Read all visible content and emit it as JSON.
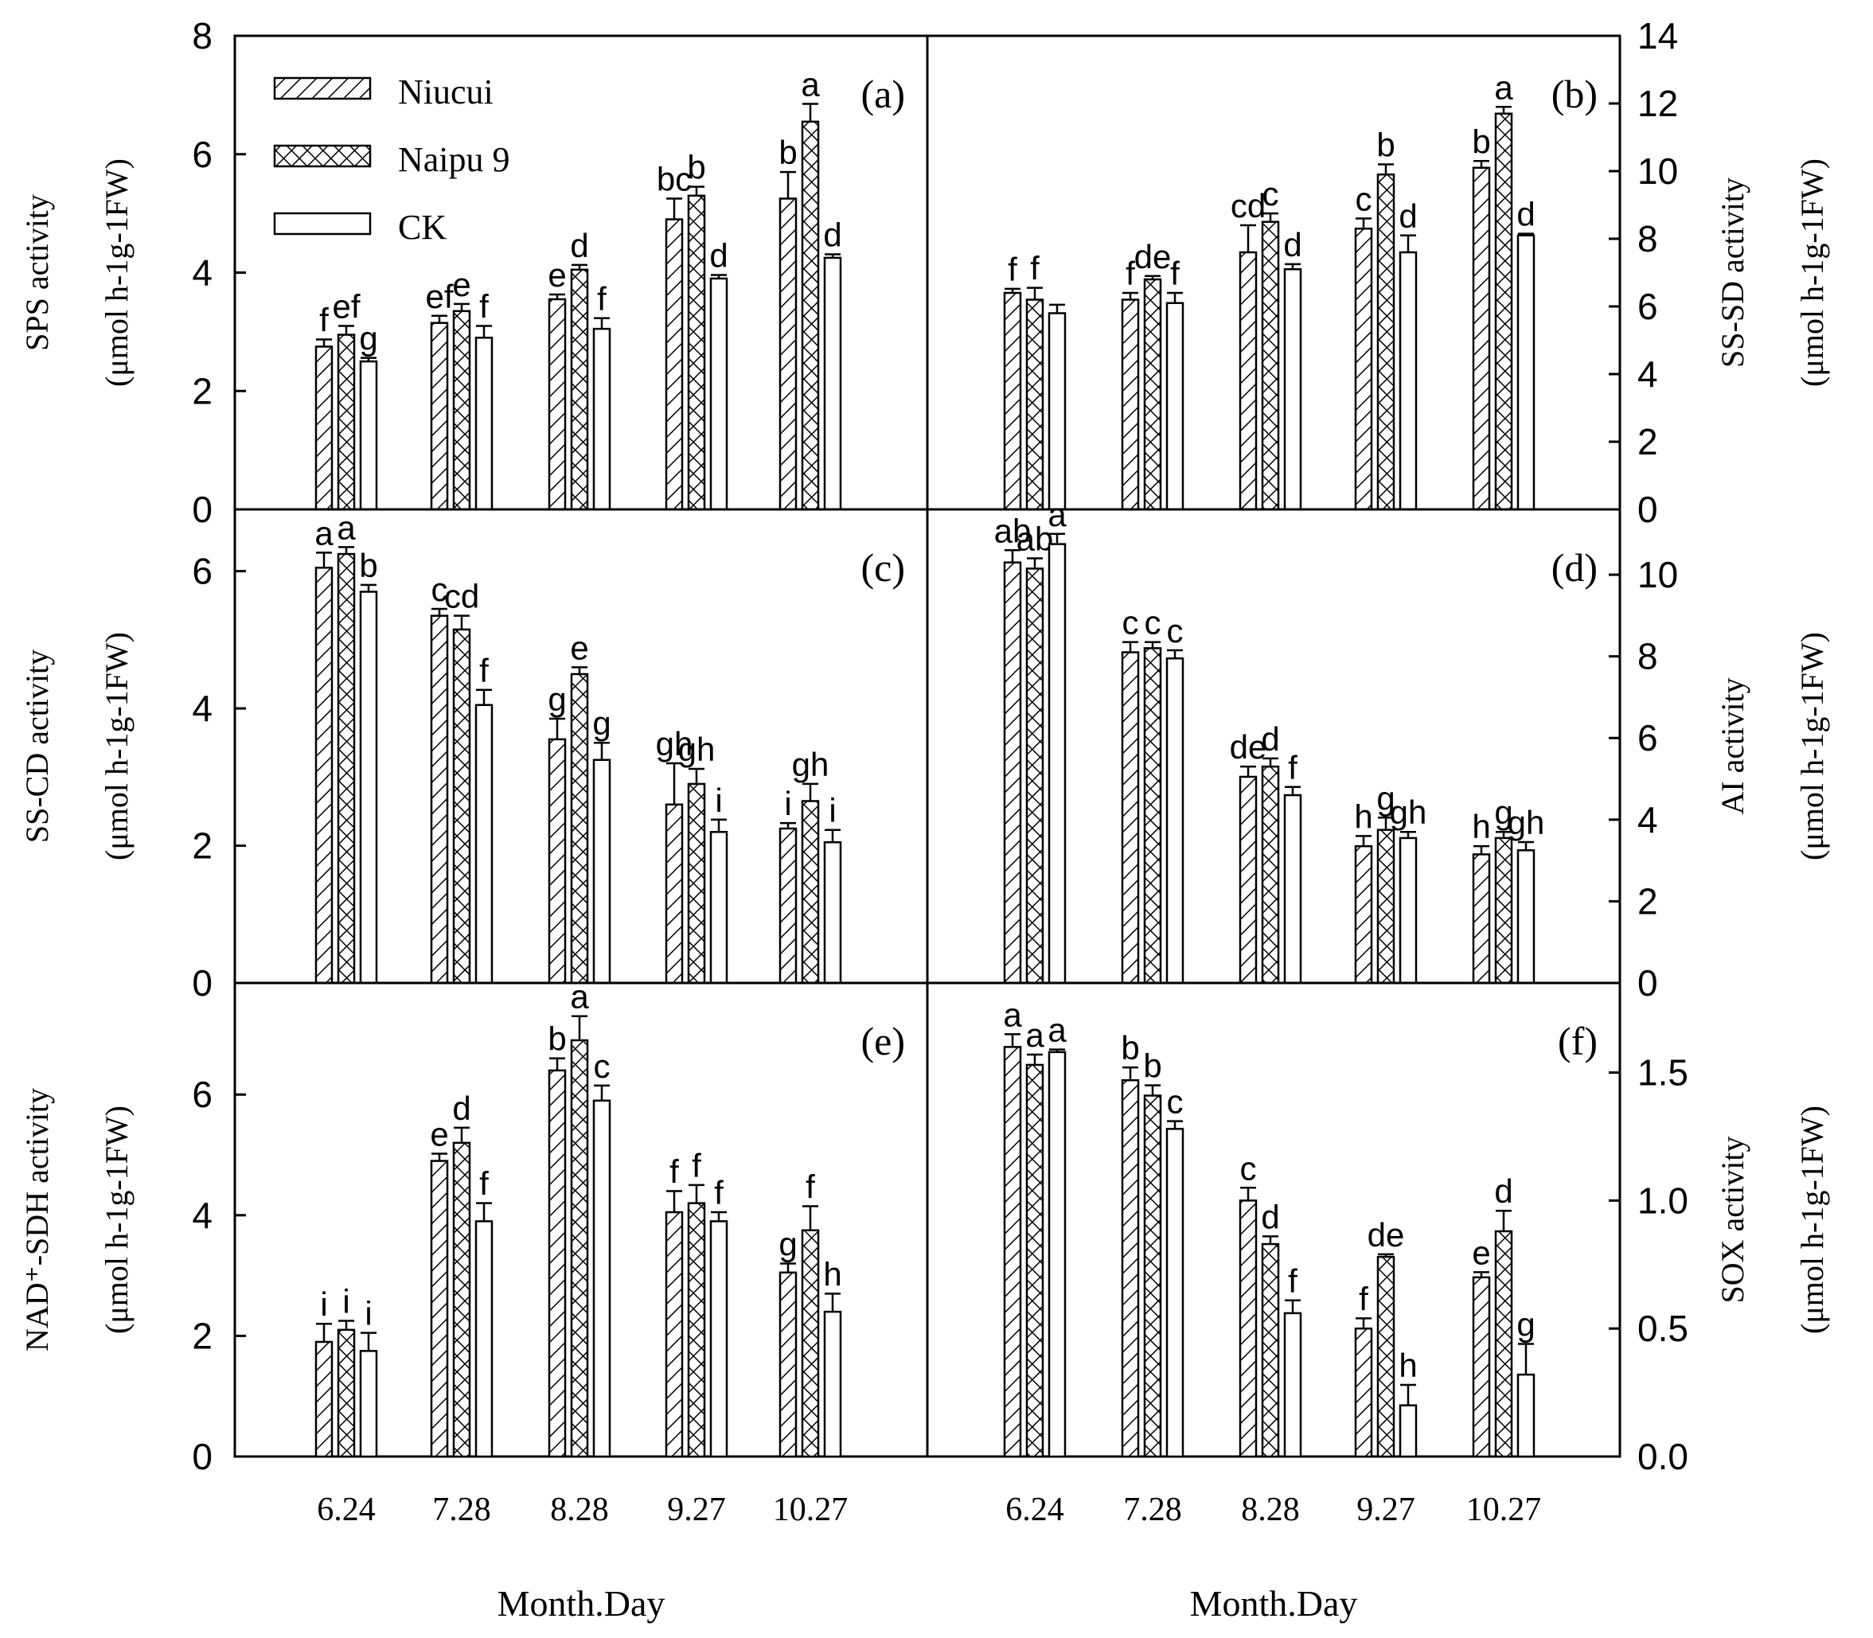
{
  "legend": [
    "Niucui",
    "Naipu 9",
    "CK"
  ],
  "x_title": "Month.Day",
  "chart_data": [
    {
      "type": "bar",
      "panel": "(a)",
      "ylabel_line1": "SPS activity",
      "ylabel_line2": "(μmol h-1g-1FW)",
      "ylim": [
        0,
        8
      ],
      "yticks": [
        0,
        2,
        4,
        6,
        8
      ],
      "categories": [
        "6.24",
        "7.28",
        "8.28",
        "9.27",
        "10.27"
      ],
      "series": [
        {
          "name": "Niucui",
          "values": [
            2.75,
            3.15,
            3.55,
            4.9,
            5.25
          ],
          "errors": [
            0.12,
            0.12,
            0.08,
            0.35,
            0.45
          ],
          "labels": [
            "f",
            "ef",
            "e",
            "bc",
            "b"
          ]
        },
        {
          "name": "Naipu 9",
          "values": [
            2.95,
            3.35,
            4.05,
            5.3,
            6.55
          ],
          "errors": [
            0.15,
            0.12,
            0.08,
            0.15,
            0.3
          ],
          "labels": [
            "ef",
            "e",
            "d",
            "b",
            "a"
          ]
        },
        {
          "name": "CK",
          "values": [
            2.5,
            2.9,
            3.05,
            3.9,
            4.25
          ],
          "errors": [
            0.06,
            0.2,
            0.18,
            0.06,
            0.06
          ],
          "labels": [
            "g",
            "f",
            "f",
            "d",
            "d"
          ]
        }
      ]
    },
    {
      "type": "bar",
      "panel": "(b)",
      "ylabel_line1": "SS-SD activity",
      "ylabel_line2": "(μmol h-1g-1FW)",
      "ylim": [
        0,
        14
      ],
      "yticks": [
        0,
        2,
        4,
        6,
        8,
        10,
        12,
        14
      ],
      "categories": [
        "6.24",
        "7.28",
        "8.28",
        "9.27",
        "10.27"
      ],
      "series": [
        {
          "name": "Niucui",
          "values": [
            6.4,
            6.2,
            7.6,
            8.3,
            10.1
          ],
          "errors": [
            0.12,
            0.2,
            0.8,
            0.3,
            0.2
          ],
          "labels": [
            "f",
            "f",
            "cd",
            "c",
            "b"
          ]
        },
        {
          "name": "Naipu 9",
          "values": [
            6.2,
            6.8,
            8.5,
            9.9,
            11.7
          ],
          "errors": [
            0.35,
            0.1,
            0.25,
            0.3,
            0.2
          ],
          "labels": [
            "f",
            "de",
            "c",
            "b",
            "a"
          ]
        },
        {
          "name": "CK",
          "values": [
            5.8,
            6.1,
            7.1,
            7.6,
            8.1
          ],
          "errors": [
            0.25,
            0.3,
            0.15,
            0.5,
            0.05
          ],
          "labels": [
            "",
            "f",
            "d",
            "d",
            "d"
          ]
        }
      ]
    },
    {
      "type": "bar",
      "panel": "(c)",
      "ylabel_line1": "SS-CD activity",
      "ylabel_line2": "(μmol h-1g-1FW)",
      "ylim": [
        0,
        6.9
      ],
      "yticks": [
        0,
        2,
        4,
        6
      ],
      "categories": [
        "6.24",
        "7.28",
        "8.28",
        "9.27",
        "10.27"
      ],
      "series": [
        {
          "name": "Niucui",
          "values": [
            6.05,
            5.35,
            3.55,
            2.6,
            2.25
          ],
          "errors": [
            0.22,
            0.1,
            0.3,
            0.6,
            0.08
          ],
          "labels": [
            "a",
            "c",
            "g",
            "gh",
            "i"
          ]
        },
        {
          "name": "Naipu 9",
          "values": [
            6.25,
            5.15,
            4.5,
            2.9,
            2.65
          ],
          "errors": [
            0.1,
            0.2,
            0.1,
            0.22,
            0.25
          ],
          "labels": [
            "a",
            "cd",
            "e",
            "gh",
            "gh"
          ]
        },
        {
          "name": "CK",
          "values": [
            5.7,
            4.05,
            3.25,
            2.2,
            2.05
          ],
          "errors": [
            0.1,
            0.22,
            0.25,
            0.18,
            0.18
          ],
          "labels": [
            "b",
            "f",
            "g",
            "i",
            "i"
          ]
        }
      ]
    },
    {
      "type": "bar",
      "panel": "(d)",
      "ylabel_line1": "AI activity",
      "ylabel_line2": "(μmol h-1g-1FW)",
      "ylim": [
        0,
        11.6
      ],
      "yticks": [
        0,
        2,
        4,
        6,
        8,
        10
      ],
      "categories": [
        "6.24",
        "7.28",
        "8.28",
        "9.27",
        "10.27"
      ],
      "series": [
        {
          "name": "Niucui",
          "values": [
            10.3,
            8.1,
            5.05,
            3.35,
            3.15
          ],
          "errors": [
            0.3,
            0.25,
            0.25,
            0.25,
            0.2
          ],
          "labels": [
            "ab",
            "c",
            "de",
            "h",
            "h"
          ]
        },
        {
          "name": "Naipu 9",
          "values": [
            10.15,
            8.2,
            5.3,
            3.75,
            3.55
          ],
          "errors": [
            0.25,
            0.15,
            0.2,
            0.3,
            0.15
          ],
          "labels": [
            "ab",
            "c",
            "d",
            "g",
            "g"
          ]
        },
        {
          "name": "CK",
          "values": [
            10.75,
            7.95,
            4.6,
            3.55,
            3.25
          ],
          "errors": [
            0.25,
            0.2,
            0.2,
            0.15,
            0.2
          ],
          "labels": [
            "a",
            "c",
            "f",
            "gh",
            "gh"
          ]
        }
      ]
    },
    {
      "type": "bar",
      "panel": "(e)",
      "ylabel_line1": "NAD⁺-SDH activity",
      "ylabel_line2": "(μmol h-1g-1FW)",
      "ylim": [
        0,
        7.85
      ],
      "yticks": [
        0,
        2,
        4,
        6
      ],
      "categories": [
        "6.24",
        "7.28",
        "8.28",
        "9.27",
        "10.27"
      ],
      "series": [
        {
          "name": "Niucui",
          "values": [
            1.9,
            4.9,
            6.4,
            4.05,
            3.05
          ],
          "errors": [
            0.3,
            0.12,
            0.2,
            0.35,
            0.15
          ],
          "labels": [
            "i",
            "e",
            "b",
            "f",
            "g"
          ]
        },
        {
          "name": "Naipu 9",
          "values": [
            2.1,
            5.2,
            6.9,
            4.2,
            3.75
          ],
          "errors": [
            0.15,
            0.25,
            0.4,
            0.3,
            0.4
          ],
          "labels": [
            "i",
            "d",
            "a",
            "f",
            "f"
          ]
        },
        {
          "name": "CK",
          "values": [
            1.75,
            3.9,
            5.9,
            3.9,
            2.4
          ],
          "errors": [
            0.3,
            0.3,
            0.25,
            0.15,
            0.3
          ],
          "labels": [
            "i",
            "f",
            "c",
            "f",
            "h"
          ]
        }
      ]
    },
    {
      "type": "bar",
      "panel": "(f)",
      "ylabel_line1": "SOX activity",
      "ylabel_line2": "(μmol h-1g-1FW)",
      "ylim": [
        0,
        1.85
      ],
      "yticks": [
        0.0,
        0.5,
        1.0,
        1.5
      ],
      "categories": [
        "6.24",
        "7.28",
        "8.28",
        "9.27",
        "10.27"
      ],
      "series": [
        {
          "name": "Niucui",
          "values": [
            1.6,
            1.47,
            1.0,
            0.5,
            0.7
          ],
          "errors": [
            0.05,
            0.05,
            0.05,
            0.04,
            0.02
          ],
          "labels": [
            "a",
            "b",
            "c",
            "f",
            "e"
          ]
        },
        {
          "name": "Naipu 9",
          "values": [
            1.53,
            1.41,
            0.83,
            0.78,
            0.88
          ],
          "errors": [
            0.04,
            0.04,
            0.03,
            0.01,
            0.08
          ],
          "labels": [
            "a",
            "b",
            "d",
            "de",
            "d"
          ]
        },
        {
          "name": "CK",
          "values": [
            1.58,
            1.28,
            0.56,
            0.2,
            0.32
          ],
          "errors": [
            0.01,
            0.03,
            0.05,
            0.08,
            0.12
          ],
          "labels": [
            "a",
            "c",
            "f",
            "h",
            "g"
          ]
        }
      ]
    }
  ]
}
